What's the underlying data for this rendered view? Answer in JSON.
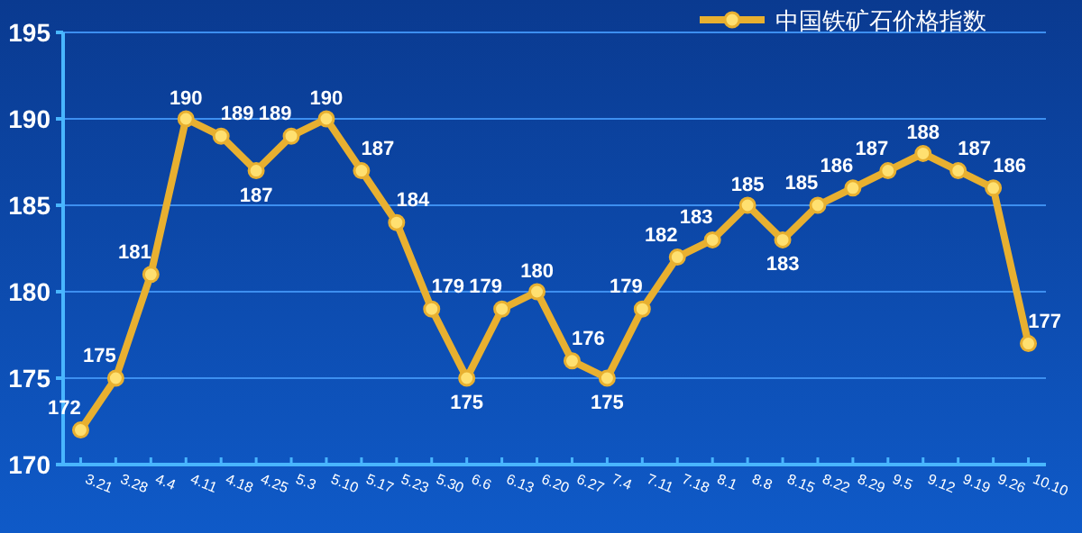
{
  "chart_data": {
    "type": "line",
    "categories": [
      "3.21",
      "3.28",
      "4.4",
      "4.11",
      "4.18",
      "4.25",
      "5.3",
      "5.10",
      "5.17",
      "5.23",
      "5.30",
      "6.6",
      "6.13",
      "6.20",
      "6.27",
      "7.4",
      "7.11",
      "7.18",
      "8.1",
      "8.8",
      "8.15",
      "8.22",
      "8.29",
      "9.5",
      "9.12",
      "9.19",
      "9.26",
      "10.10"
    ],
    "series": [
      {
        "name": "中国铁矿石价格指数",
        "color": "#e8b030",
        "values": [
          172,
          175,
          181,
          190,
          189,
          187,
          189,
          190,
          187,
          184,
          179,
          175,
          179,
          180,
          176,
          175,
          179,
          182,
          183,
          185,
          183,
          185,
          186,
          187,
          188,
          187,
          186,
          177
        ]
      }
    ],
    "ylim": [
      170,
      195
    ],
    "yticks": [
      170,
      175,
      180,
      185,
      190,
      195
    ],
    "grid": "y",
    "legend": "top right",
    "marker": "circle",
    "data_labels": true
  }
}
